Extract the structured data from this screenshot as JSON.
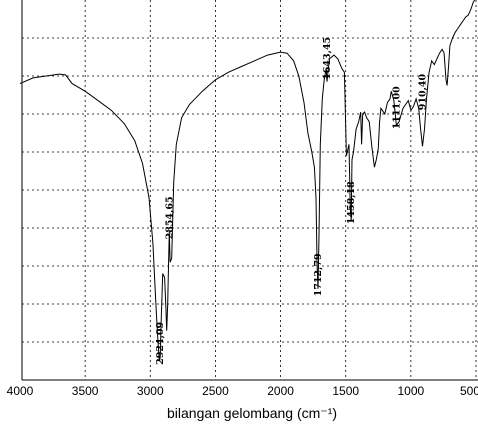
{
  "chart_data": {
    "type": "line",
    "xlabel": "bilangan gelombang (cm⁻¹)",
    "ylabel": "",
    "xlim": [
      4000,
      500
    ],
    "x_reversed": true,
    "ylim": [
      0,
      100
    ],
    "grid": true,
    "x_ticks": [
      "4000",
      "3500",
      "3000",
      "2500",
      "2000",
      "1500",
      "1000",
      "500"
    ],
    "series": [
      {
        "x": [
          4000,
          3900,
          3800,
          3700,
          3650,
          3600,
          3500,
          3400,
          3300,
          3200,
          3120,
          3060,
          3010,
          2980,
          2960,
          2945,
          2935,
          2929,
          2924,
          2918,
          2905,
          2890,
          2880,
          2874,
          2866,
          2860,
          2854,
          2848,
          2836,
          2820,
          2800,
          2760,
          2700,
          2600,
          2500,
          2400,
          2300,
          2200,
          2100,
          2000,
          1950,
          1900,
          1860,
          1820,
          1790,
          1760,
          1740,
          1728,
          1720,
          1712.79,
          1705,
          1695,
          1680,
          1665,
          1650,
          1643.45,
          1625,
          1590,
          1560,
          1530,
          1510,
          1495,
          1475,
          1465,
          1458.18,
          1452,
          1440,
          1420,
          1400,
          1385,
          1378,
          1370,
          1355,
          1340,
          1320,
          1300,
          1280,
          1265,
          1250,
          1240,
          1230,
          1200,
          1180,
          1160,
          1150,
          1130,
          1111,
          1090,
          1060,
          1040,
          1020,
          1000,
          980,
          960,
          940,
          925,
          910.4,
          895,
          880,
          860,
          840,
          820,
          800,
          780,
          760,
          745,
          730,
          722,
          712,
          700,
          680,
          660,
          640,
          620,
          600,
          580,
          560,
          540,
          520,
          500
        ],
        "y": [
          78,
          79.5,
          80,
          80.5,
          80.3,
          78,
          76,
          73.5,
          71,
          67.5,
          63,
          57,
          48,
          36,
          22,
          12,
          7,
          5,
          6,
          14,
          28,
          27,
          19,
          13,
          20,
          30,
          39,
          31,
          32,
          52,
          62,
          69,
          72.5,
          76,
          79,
          81,
          82.5,
          84,
          85.5,
          86.3,
          86,
          84,
          80,
          73,
          65,
          60,
          56,
          48,
          30,
          24,
          38,
          62,
          74,
          79,
          82,
          78.5,
          84.5,
          85.5,
          84.5,
          82,
          81,
          59,
          62,
          45,
          42,
          58,
          60,
          66,
          68,
          70.5,
          62,
          70,
          70.5,
          69,
          68,
          61.5,
          56,
          58,
          61,
          68,
          71.5,
          70,
          73,
          74,
          76,
          73.5,
          67,
          68,
          71.5,
          72.5,
          73.5,
          71,
          72,
          74,
          71.5,
          66,
          61.5,
          66,
          74,
          81,
          84,
          83,
          84.5,
          86,
          87,
          86,
          79,
          77.5,
          82,
          88,
          90,
          91.5,
          92.5,
          93.5,
          94.5,
          95.5,
          96,
          97.5,
          99.5,
          100.5
        ]
      }
    ],
    "annotations": [
      {
        "text": "2924,09",
        "x": 2924,
        "y": 4
      },
      {
        "text": "2854,65",
        "x": 2854,
        "y": 37
      },
      {
        "text": "1712,79",
        "x": 1712.79,
        "y": 22
      },
      {
        "text": "1643,45",
        "x": 1643.45,
        "y": 79
      },
      {
        "text": "1458,18",
        "x": 1458.18,
        "y": 41
      },
      {
        "text": "1111,00",
        "x": 1111,
        "y": 66
      },
      {
        "text": "910,40",
        "x": 910.4,
        "y": 71
      }
    ]
  }
}
